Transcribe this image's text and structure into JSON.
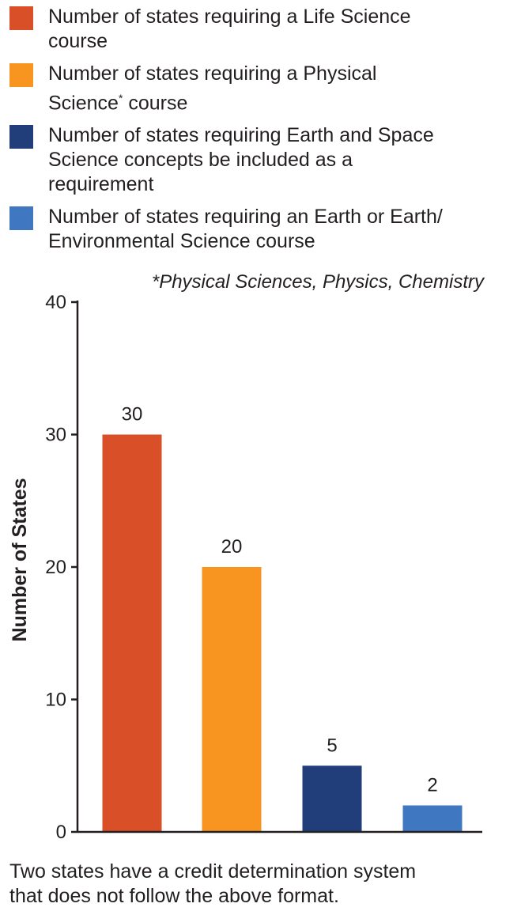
{
  "chart_data": {
    "type": "bar",
    "categories": [
      "Number of states requiring a Life Science course",
      "Number of states requiring a Physical Science* course",
      "Number of states requiring Earth and Space Science concepts be included as a requirement",
      "Number of states requiring an Earth or Earth/Environmental Science course"
    ],
    "values": [
      30,
      20,
      5,
      2
    ],
    "data_labels": [
      "30",
      "20",
      "5",
      "2"
    ],
    "colors": [
      "#d94f27",
      "#f79520",
      "#213e7a",
      "#3f78c1"
    ],
    "ylabel": "Number of States",
    "ylim": [
      0,
      40
    ],
    "yticks": [
      0,
      10,
      20,
      30,
      40
    ],
    "ytick_labels": [
      "0",
      "10",
      "20",
      "30",
      "40"
    ],
    "grid": false,
    "legend_position": "top",
    "legend": [
      {
        "label_line1": "Number of states requiring a Life Science",
        "label_line2": "course",
        "label_line3": "",
        "footnote_mark": "",
        "color": "#d94f27"
      },
      {
        "label_line1": "Number of states requiring a Physical",
        "label_line2": "Science",
        "label_line3": " course",
        "footnote_mark": "*",
        "color": "#f79520"
      },
      {
        "label_line1": "Number of states requiring Earth and Space",
        "label_line2": "Science concepts be included as a",
        "label_line3": "requirement",
        "footnote_mark": "",
        "color": "#213e7a"
      },
      {
        "label_line1": "Number of states requiring an Earth or Earth/",
        "label_line2": "Environmental Science course",
        "label_line3": "",
        "footnote_mark": "",
        "color": "#3f78c1"
      }
    ],
    "footnote": "*Physical Sciences, Physics, Chemistry"
  },
  "caption": {
    "line1": "Two states have a credit determination system",
    "line2": "that does not follow the above format."
  }
}
